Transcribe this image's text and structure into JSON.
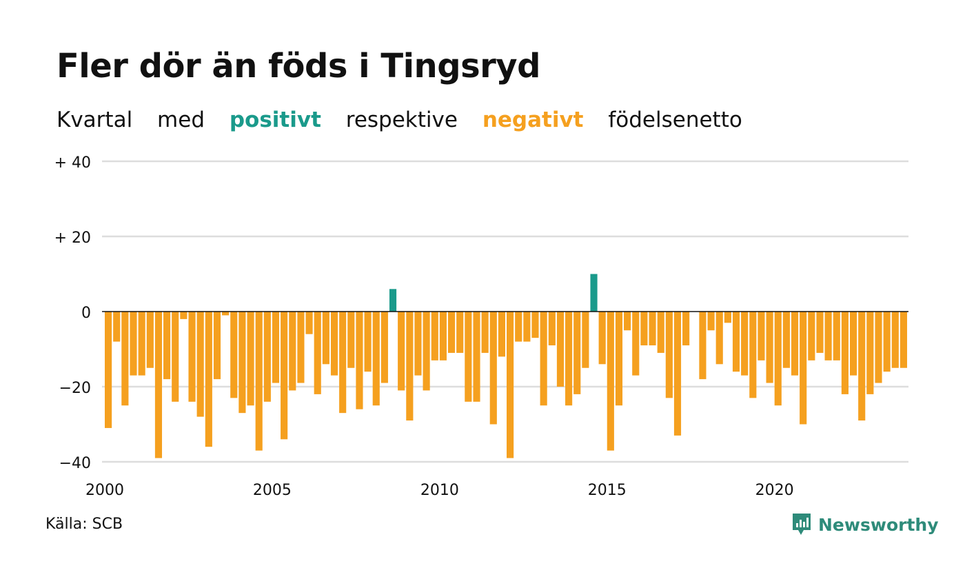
{
  "title": "Fler dör än föds i Tingsryd",
  "subtitle": {
    "part1": "Kvartal",
    "part2": "med",
    "positive_word": "positivt",
    "part3": "respektive",
    "negative_word": "negativt",
    "part4": "födelsenetto"
  },
  "colors": {
    "positive": "#1a9a8b",
    "negative": "#f5a01f",
    "grid": "#dddddd",
    "baseline": "#111111",
    "logo": "#2e8b7a"
  },
  "source": "Källa: SCB",
  "brand": {
    "name": "Newsworthy",
    "icon": "newsworthy-logo-icon"
  },
  "chart_data": {
    "type": "bar",
    "title": "Fler dör än föds i Tingsryd",
    "subtitle": "Kvartal med positivt respektive negativt födelsenetto",
    "x_start": 2000,
    "x_end": 2024,
    "x_ticks": [
      2000,
      2005,
      2010,
      2015,
      2020
    ],
    "x_tick_labels": [
      "2000",
      "2005",
      "2010",
      "2015",
      "2020"
    ],
    "y_ticks": [
      40,
      20,
      0,
      -20,
      -40
    ],
    "y_tick_labels": [
      "+ 40",
      "+ 20",
      "0",
      "−20",
      "−40"
    ],
    "ylim": [
      -40,
      40
    ],
    "grid": true,
    "categories": [
      "2000 Q1",
      "2000 Q2",
      "2000 Q3",
      "2000 Q4",
      "2001 Q1",
      "2001 Q2",
      "2001 Q3",
      "2001 Q4",
      "2002 Q1",
      "2002 Q2",
      "2002 Q3",
      "2002 Q4",
      "2003 Q1",
      "2003 Q2",
      "2003 Q3",
      "2003 Q4",
      "2004 Q1",
      "2004 Q2",
      "2004 Q3",
      "2004 Q4",
      "2005 Q1",
      "2005 Q2",
      "2005 Q3",
      "2005 Q4",
      "2006 Q1",
      "2006 Q2",
      "2006 Q3",
      "2006 Q4",
      "2007 Q1",
      "2007 Q2",
      "2007 Q3",
      "2007 Q4",
      "2008 Q1",
      "2008 Q2",
      "2008 Q3",
      "2008 Q4",
      "2009 Q1",
      "2009 Q2",
      "2009 Q3",
      "2009 Q4",
      "2010 Q1",
      "2010 Q2",
      "2010 Q3",
      "2010 Q4",
      "2011 Q1",
      "2011 Q2",
      "2011 Q3",
      "2011 Q4",
      "2012 Q1",
      "2012 Q2",
      "2012 Q3",
      "2012 Q4",
      "2013 Q1",
      "2013 Q2",
      "2013 Q3",
      "2013 Q4",
      "2014 Q1",
      "2014 Q2",
      "2014 Q3",
      "2014 Q4",
      "2015 Q1",
      "2015 Q2",
      "2015 Q3",
      "2015 Q4",
      "2016 Q1",
      "2016 Q2",
      "2016 Q3",
      "2016 Q4",
      "2017 Q1",
      "2017 Q2",
      "2017 Q3",
      "2017 Q4",
      "2018 Q1",
      "2018 Q2",
      "2018 Q3",
      "2018 Q4",
      "2019 Q1",
      "2019 Q2",
      "2019 Q3",
      "2019 Q4",
      "2020 Q1",
      "2020 Q2",
      "2020 Q3",
      "2020 Q4",
      "2021 Q1",
      "2021 Q2",
      "2021 Q3",
      "2021 Q4",
      "2022 Q1",
      "2022 Q2",
      "2022 Q3",
      "2022 Q4",
      "2023 Q1",
      "2023 Q2",
      "2023 Q3",
      "2023 Q4"
    ],
    "values": [
      -31,
      -8,
      -25,
      -17,
      -17,
      -15,
      -39,
      -18,
      -24,
      -2,
      -24,
      -28,
      -36,
      -18,
      -1,
      -23,
      -27,
      -25,
      -37,
      -24,
      -19,
      -34,
      -21,
      -19,
      -6,
      -22,
      -14,
      -17,
      -27,
      -15,
      -26,
      -16,
      -25,
      -19,
      6,
      -21,
      -29,
      -17,
      -21,
      -13,
      -13,
      -11,
      -11,
      -24,
      -24,
      -11,
      -30,
      -12,
      -39,
      -8,
      -8,
      -7,
      -25,
      -9,
      -20,
      -25,
      -22,
      -15,
      10,
      -14,
      -37,
      -25,
      -5,
      -17,
      -9,
      -9,
      -11,
      -23,
      -33,
      -9,
      0,
      -18,
      -5,
      -14,
      -3,
      -16,
      -17,
      -23,
      -13,
      -19,
      -25,
      -15,
      -17,
      -30,
      -13,
      -11,
      -13,
      -13,
      -22,
      -17,
      -29,
      -22,
      -19,
      -16,
      -15,
      -15
    ]
  }
}
